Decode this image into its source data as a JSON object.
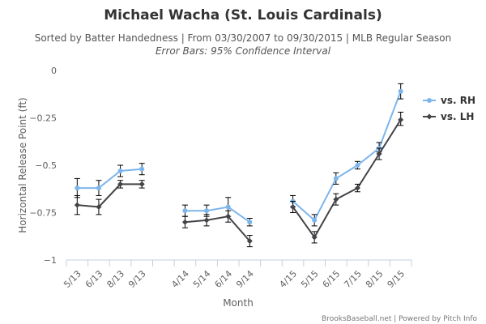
{
  "chart_data": {
    "type": "line",
    "title": "Michael Wacha (St. Louis Cardinals)",
    "subtitle": "Sorted by Batter Handedness | From 03/30/2007 to 09/30/2015 | MLB Regular Season",
    "subtitle2": "Error Bars: 95% Confidence Interval",
    "xlabel": "Month",
    "ylabel": "Horizontal Release Point (ft)",
    "ylim": [
      -1,
      0
    ],
    "yticks": [
      0,
      -0.25,
      -0.5,
      -0.75,
      -1
    ],
    "ytick_labels": [
      "0",
      "−0.25",
      "−0.5",
      "−0.75",
      "−1"
    ],
    "grid": false,
    "legend": "right",
    "categories": [
      "5/13",
      "6/13",
      "8/13",
      "9/13",
      "",
      "4/14",
      "5/14",
      "6/14",
      "9/14",
      "",
      "4/15",
      "5/15",
      "6/15",
      "7/15",
      "8/15",
      "9/15"
    ],
    "series": [
      {
        "name": "vs. RH",
        "color": "#7cb5ec",
        "values": [
          -0.62,
          -0.62,
          -0.53,
          -0.52,
          null,
          -0.74,
          -0.74,
          -0.72,
          -0.8,
          null,
          -0.69,
          -0.79,
          -0.57,
          -0.5,
          -0.41,
          -0.11
        ],
        "err_low": [
          -0.67,
          -0.66,
          -0.56,
          -0.55,
          null,
          -0.77,
          -0.77,
          -0.77,
          -0.82,
          null,
          -0.72,
          -0.82,
          -0.6,
          -0.52,
          -0.43,
          -0.15
        ],
        "err_high": [
          -0.57,
          -0.58,
          -0.5,
          -0.49,
          null,
          -0.71,
          -0.71,
          -0.67,
          -0.78,
          null,
          -0.66,
          -0.76,
          -0.54,
          -0.48,
          -0.38,
          -0.07
        ]
      },
      {
        "name": "vs. LH",
        "color": "#434348",
        "values": [
          -0.71,
          -0.72,
          -0.6,
          -0.6,
          null,
          -0.8,
          -0.79,
          -0.77,
          -0.9,
          null,
          -0.72,
          -0.88,
          -0.68,
          -0.62,
          -0.44,
          -0.26
        ],
        "err_low": [
          -0.76,
          -0.76,
          -0.62,
          -0.62,
          null,
          -0.83,
          -0.82,
          -0.8,
          -0.93,
          null,
          -0.75,
          -0.91,
          -0.71,
          -0.64,
          -0.47,
          -0.29
        ],
        "err_high": [
          -0.66,
          -0.68,
          -0.58,
          -0.58,
          null,
          -0.77,
          -0.76,
          -0.74,
          -0.87,
          null,
          -0.69,
          -0.85,
          -0.65,
          -0.6,
          -0.41,
          -0.22
        ]
      }
    ]
  },
  "credit": "BrooksBaseball.net | Powered by Pitch Info"
}
